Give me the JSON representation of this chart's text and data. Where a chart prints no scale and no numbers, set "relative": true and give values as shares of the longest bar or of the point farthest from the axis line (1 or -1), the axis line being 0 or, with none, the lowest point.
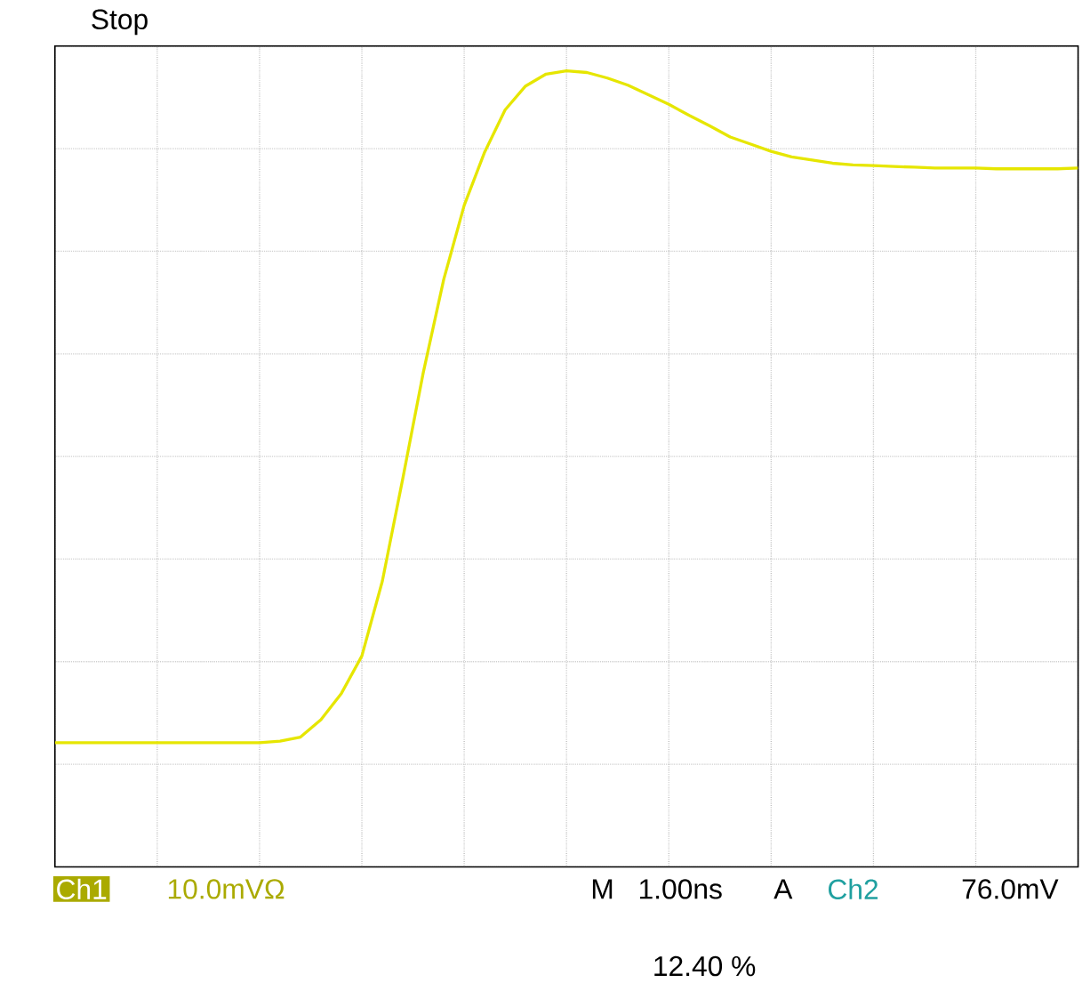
{
  "chart_data": {
    "type": "line",
    "relative": true,
    "grid": true,
    "color": "#e6e600",
    "categories": [
      null,
      null,
      null,
      null,
      null,
      null,
      null,
      null,
      null,
      null,
      null,
      null,
      null,
      null,
      null,
      null,
      null,
      null,
      null,
      null,
      null,
      null,
      null,
      null,
      null,
      null,
      null,
      null,
      null,
      null,
      null,
      null,
      null,
      null,
      null,
      null,
      null,
      null,
      null,
      null,
      null,
      null,
      null,
      null,
      null,
      null,
      null,
      null,
      null,
      null,
      null
    ],
    "values": [
      0.156,
      0.156,
      0.156,
      0.156,
      0.156,
      0.156,
      0.156,
      0.156,
      0.156,
      0.156,
      0.156,
      0.158,
      0.163,
      0.185,
      0.218,
      0.265,
      0.359,
      0.488,
      0.621,
      0.738,
      0.831,
      0.898,
      0.951,
      0.981,
      0.996,
      1,
      0.998,
      0.991,
      0.982,
      0.97,
      0.958,
      0.944,
      0.931,
      0.917,
      0.908,
      0.899,
      0.892,
      0.888,
      0.884,
      0.882,
      0.881,
      0.88,
      0.879,
      0.878,
      0.878,
      0.878,
      0.877,
      0.877,
      0.877,
      0.877,
      0.878
    ],
    "annotations": [
      "Stop",
      "Ch1",
      "10.0mVΩ",
      "M",
      "1.00ns",
      "A",
      "Ch2",
      "76.0mV",
      "12.40 %"
    ]
  }
}
